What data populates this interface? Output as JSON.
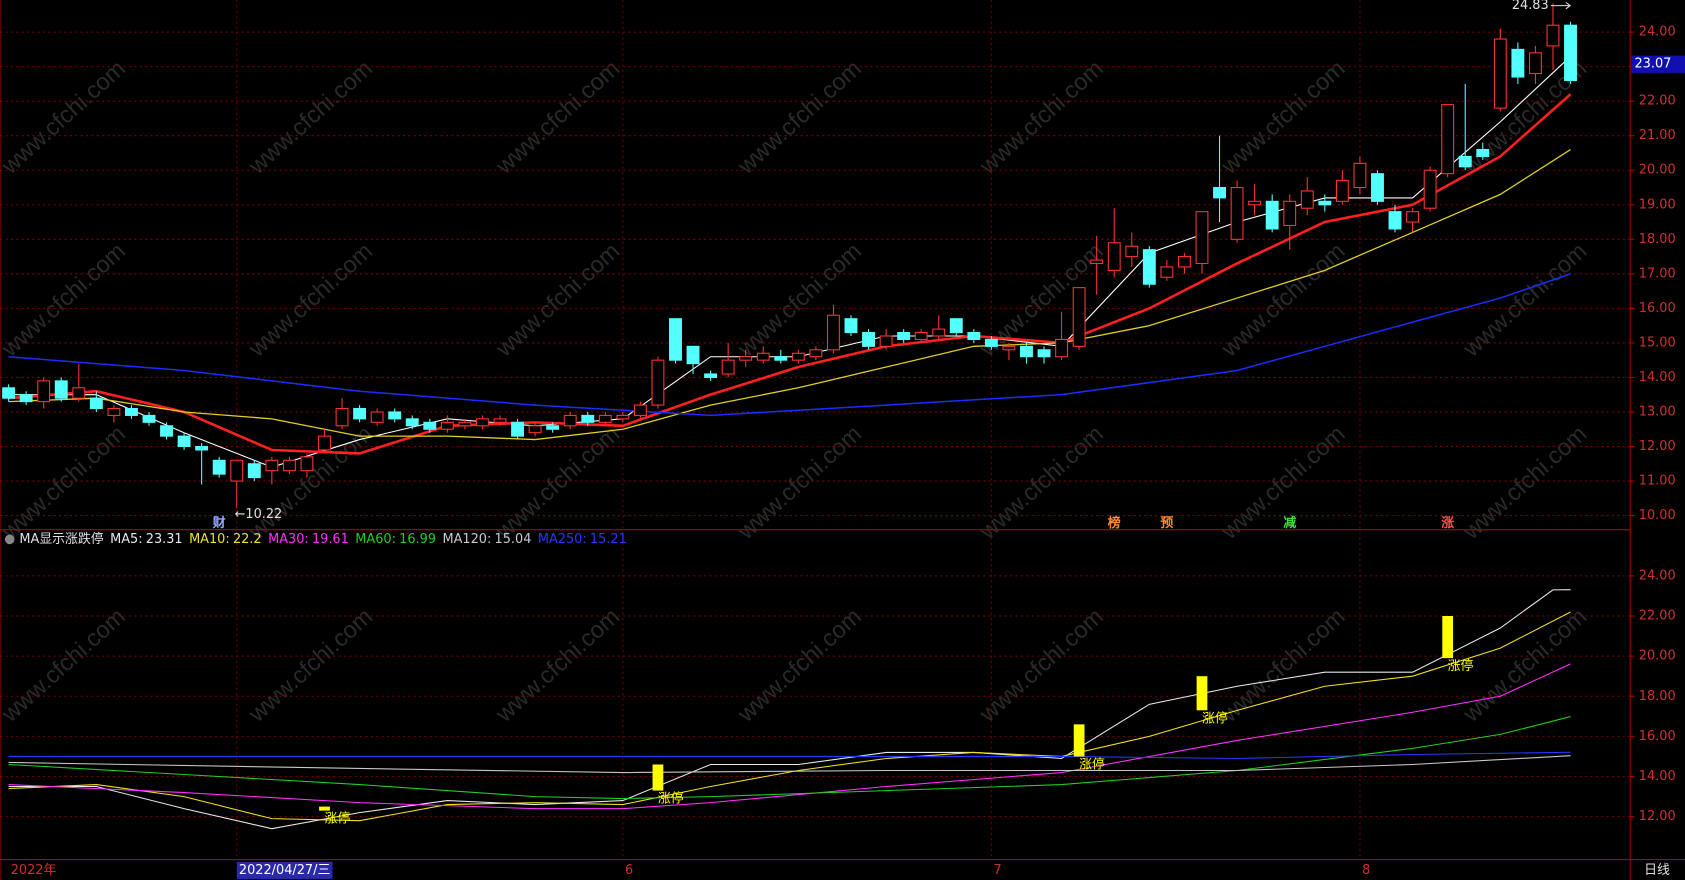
{
  "chart_data": [
    {
      "type": "candlestick",
      "xlim": [
        -0.49,
        92.4
      ],
      "ylim": [
        9.59,
        24.93
      ],
      "yticks": [
        {
          "value": 10,
          "label": "10.00"
        },
        {
          "value": 11,
          "label": "11.00"
        },
        {
          "value": 12,
          "label": "12.00"
        },
        {
          "value": 13,
          "label": "13.00"
        },
        {
          "value": 14,
          "label": "14.00"
        },
        {
          "value": 15,
          "label": "15.00"
        },
        {
          "value": 16,
          "label": "16.00"
        },
        {
          "value": 17,
          "label": "17.00"
        },
        {
          "value": 18,
          "label": "18.00"
        },
        {
          "value": 19,
          "label": "19.00"
        },
        {
          "value": 20,
          "label": "20.00"
        },
        {
          "value": 21,
          "label": "21.00"
        },
        {
          "value": 22,
          "label": "22.00"
        },
        {
          "value": 23,
          "label": "23.00"
        },
        {
          "value": 24,
          "label": "24.00"
        }
      ],
      "grid": true,
      "up_color": "#ff3232",
      "down_color": "#54ffff",
      "candles": [
        [
          13.7,
          13.8,
          13.3,
          13.4
        ],
        [
          13.5,
          13.6,
          13.2,
          13.3
        ],
        [
          13.3,
          14.0,
          13.1,
          13.9
        ],
        [
          13.9,
          14.0,
          13.3,
          13.4
        ],
        [
          13.4,
          14.4,
          13.3,
          13.7
        ],
        [
          13.4,
          13.6,
          13.0,
          13.1
        ],
        [
          12.9,
          13.2,
          12.7,
          13.1
        ],
        [
          13.1,
          13.2,
          12.8,
          12.9
        ],
        [
          12.9,
          13.0,
          12.6,
          12.7
        ],
        [
          12.6,
          12.7,
          12.2,
          12.3
        ],
        [
          12.3,
          12.4,
          11.9,
          12.0
        ],
        [
          12.0,
          12.1,
          10.9,
          11.9
        ],
        [
          11.6,
          11.7,
          11.1,
          11.2
        ],
        [
          11.0,
          11.6,
          10.22,
          11.6
        ],
        [
          11.5,
          11.6,
          11.0,
          11.1
        ],
        [
          11.3,
          11.7,
          10.9,
          11.6
        ],
        [
          11.3,
          11.7,
          11.2,
          11.6
        ],
        [
          11.3,
          11.8,
          11.1,
          11.7
        ],
        [
          11.9,
          12.5,
          11.8,
          12.3
        ],
        [
          12.6,
          13.4,
          12.5,
          13.1
        ],
        [
          13.1,
          13.2,
          12.7,
          12.8
        ],
        [
          12.7,
          13.1,
          12.6,
          13.0
        ],
        [
          13.0,
          13.1,
          12.7,
          12.8
        ],
        [
          12.8,
          12.9,
          12.5,
          12.6
        ],
        [
          12.7,
          12.8,
          12.4,
          12.5
        ],
        [
          12.5,
          12.9,
          12.4,
          12.7
        ],
        [
          12.6,
          12.8,
          12.5,
          12.7
        ],
        [
          12.6,
          12.9,
          12.5,
          12.8
        ],
        [
          12.7,
          12.9,
          12.6,
          12.8
        ],
        [
          12.7,
          12.8,
          12.2,
          12.3
        ],
        [
          12.4,
          12.7,
          12.3,
          12.6
        ],
        [
          12.6,
          12.7,
          12.4,
          12.5
        ],
        [
          12.6,
          13.0,
          12.5,
          12.9
        ],
        [
          12.9,
          13.0,
          12.6,
          12.7
        ],
        [
          12.7,
          13.0,
          12.6,
          12.9
        ],
        [
          12.8,
          13.0,
          12.7,
          12.9
        ],
        [
          12.9,
          13.3,
          12.8,
          13.2
        ],
        [
          13.2,
          14.6,
          13.1,
          14.5
        ],
        [
          15.7,
          15.7,
          14.4,
          14.5
        ],
        [
          14.9,
          14.9,
          14.1,
          14.4
        ],
        [
          14.1,
          14.2,
          13.9,
          14.0
        ],
        [
          14.1,
          15.0,
          14.0,
          14.5
        ],
        [
          14.5,
          14.8,
          14.3,
          14.6
        ],
        [
          14.5,
          14.9,
          14.4,
          14.7
        ],
        [
          14.6,
          14.8,
          14.4,
          14.5
        ],
        [
          14.5,
          14.8,
          14.4,
          14.7
        ],
        [
          14.6,
          14.9,
          14.5,
          14.8
        ],
        [
          14.8,
          16.1,
          14.7,
          15.8
        ],
        [
          15.7,
          15.8,
          15.2,
          15.3
        ],
        [
          15.3,
          15.4,
          14.8,
          14.9
        ],
        [
          14.9,
          15.4,
          14.8,
          15.2
        ],
        [
          15.3,
          15.4,
          15.0,
          15.1
        ],
        [
          15.1,
          15.4,
          15.0,
          15.3
        ],
        [
          15.2,
          15.8,
          15.1,
          15.4
        ],
        [
          15.7,
          15.7,
          15.2,
          15.3
        ],
        [
          15.3,
          15.4,
          15.0,
          15.1
        ],
        [
          15.1,
          15.2,
          14.8,
          14.9
        ],
        [
          14.8,
          15.0,
          14.5,
          14.9
        ],
        [
          14.9,
          15.0,
          14.4,
          14.6
        ],
        [
          14.8,
          14.9,
          14.4,
          14.6
        ],
        [
          14.6,
          15.9,
          14.5,
          15.1
        ],
        [
          14.9,
          16.6,
          14.8,
          16.6
        ],
        [
          17.3,
          18.1,
          16.4,
          17.4
        ],
        [
          17.1,
          18.9,
          16.9,
          17.9
        ],
        [
          17.5,
          18.2,
          17.2,
          17.8
        ],
        [
          17.7,
          17.8,
          16.6,
          16.7
        ],
        [
          16.9,
          17.4,
          16.8,
          17.2
        ],
        [
          17.2,
          17.6,
          17.0,
          17.5
        ],
        [
          17.3,
          18.8,
          17.0,
          18.8
        ],
        [
          19.5,
          21.0,
          18.5,
          19.2
        ],
        [
          18.0,
          19.7,
          17.9,
          19.5
        ],
        [
          19.0,
          19.6,
          18.7,
          19.1
        ],
        [
          19.1,
          19.3,
          18.2,
          18.3
        ],
        [
          18.4,
          19.3,
          17.7,
          19.1
        ],
        [
          18.9,
          19.8,
          18.7,
          19.4
        ],
        [
          19.1,
          19.3,
          18.8,
          19.0
        ],
        [
          19.1,
          20.0,
          19.0,
          19.7
        ],
        [
          19.5,
          20.4,
          19.3,
          20.2
        ],
        [
          19.9,
          20.0,
          19.0,
          19.1
        ],
        [
          18.8,
          19.0,
          18.2,
          18.3
        ],
        [
          18.5,
          18.9,
          18.2,
          18.8
        ],
        [
          18.9,
          20.1,
          18.8,
          20.0
        ],
        [
          19.9,
          21.9,
          19.8,
          21.9
        ],
        [
          20.4,
          22.5,
          20.0,
          20.1
        ],
        [
          20.6,
          20.8,
          20.3,
          20.4
        ],
        [
          21.8,
          24.1,
          21.7,
          23.8
        ],
        [
          23.5,
          23.7,
          22.5,
          22.7
        ],
        [
          22.8,
          23.6,
          22.5,
          23.4
        ],
        [
          23.6,
          24.83,
          22.9,
          24.2
        ],
        [
          24.2,
          24.3,
          22.5,
          22.6
        ]
      ],
      "lines": [
        {
          "color": "#ffffff",
          "width": 1,
          "x": [
            0,
            5,
            10,
            15,
            20,
            25,
            30,
            35,
            40,
            45,
            50,
            55,
            60,
            65,
            70,
            75,
            80,
            85,
            89
          ],
          "values": [
            13.5,
            13.5,
            12.4,
            11.4,
            12.2,
            12.8,
            12.6,
            12.8,
            14.6,
            14.6,
            15.2,
            15.2,
            14.9,
            17.6,
            18.5,
            19.2,
            19.2,
            21.4,
            23.3
          ]
        },
        {
          "color": "#ff2020",
          "width": 2.4,
          "x": [
            0,
            5,
            10,
            15,
            20,
            25,
            30,
            35,
            40,
            45,
            50,
            55,
            60,
            65,
            70,
            75,
            80,
            85,
            89
          ],
          "values": [
            13.4,
            13.6,
            13.0,
            11.9,
            11.8,
            12.6,
            12.7,
            12.6,
            13.5,
            14.3,
            14.9,
            15.2,
            15.0,
            16.0,
            17.3,
            18.5,
            19.0,
            20.4,
            22.2
          ]
        },
        {
          "color": "#e0d020",
          "width": 1.2,
          "x": [
            0,
            5,
            10,
            15,
            20,
            25,
            30,
            35,
            40,
            45,
            50,
            55,
            60,
            65,
            70,
            75,
            80,
            85,
            89
          ],
          "values": [
            13.3,
            13.4,
            13.0,
            12.8,
            12.3,
            12.3,
            12.2,
            12.5,
            13.2,
            13.7,
            14.3,
            14.9,
            15.0,
            15.5,
            16.3,
            17.1,
            18.2,
            19.3,
            20.6
          ]
        },
        {
          "color": "#1c2cff",
          "width": 1.4,
          "x": [
            0,
            10,
            20,
            30,
            40,
            50,
            60,
            70,
            75,
            80,
            85,
            89
          ],
          "values": [
            14.6,
            14.2,
            13.6,
            13.2,
            12.9,
            13.2,
            13.5,
            14.2,
            14.9,
            15.6,
            16.3,
            17.0
          ]
        }
      ],
      "high_label": {
        "index": 88,
        "value": 24.83
      },
      "low_label": {
        "index": 13,
        "value": 10.22,
        "label": "←10.22"
      },
      "last_price": 23.07,
      "events": [
        {
          "index": 12,
          "label": "财",
          "color": "#9aa8ff"
        },
        {
          "index": 63,
          "label": "榜",
          "color": "#ff8c28"
        },
        {
          "index": 66,
          "label": "预",
          "color": "#ff8c28"
        },
        {
          "index": 73,
          "label": "减",
          "color": "#40e040"
        },
        {
          "index": 82,
          "label": "涨",
          "color": "#ff5050"
        }
      ],
      "x_labels": [
        {
          "index": 0,
          "label": "2022年"
        },
        {
          "index": 13,
          "label": "2022/04/27/三",
          "highlight": true
        },
        {
          "index": 35,
          "label": "6"
        },
        {
          "index": 56,
          "label": "7"
        },
        {
          "index": 77,
          "label": "8"
        }
      ],
      "period": "日线",
      "watermark": "www.cfchi.com"
    },
    {
      "type": "line",
      "title": "MA显示涨跌停",
      "legend_separator": ":",
      "xlim": [
        -0.49,
        92.4
      ],
      "ylim": [
        9.86,
        25.39
      ],
      "yticks": [
        {
          "value": 12,
          "label": "12.00"
        },
        {
          "value": 14,
          "label": "14.00"
        },
        {
          "value": 16,
          "label": "16.00"
        },
        {
          "value": 18,
          "label": "18.00"
        },
        {
          "value": 20,
          "label": "20.00"
        },
        {
          "value": 22,
          "label": "22.00"
        },
        {
          "value": 24,
          "label": "24.00"
        }
      ],
      "series": [
        {
          "name": "MA5",
          "color": "#e8e8e8",
          "latest": 23.31,
          "x": [
            0,
            5,
            10,
            15,
            20,
            25,
            30,
            35,
            40,
            45,
            50,
            55,
            60,
            65,
            70,
            75,
            80,
            85,
            88,
            89
          ],
          "values": [
            13.5,
            13.5,
            12.4,
            11.4,
            12.2,
            12.8,
            12.6,
            12.8,
            14.6,
            14.6,
            15.2,
            15.2,
            14.9,
            17.6,
            18.5,
            19.2,
            19.2,
            21.4,
            23.3,
            23.31
          ]
        },
        {
          "name": "MA10",
          "color": "#f0e020",
          "latest": 22.2,
          "x": [
            0,
            5,
            10,
            15,
            20,
            25,
            30,
            35,
            40,
            45,
            50,
            55,
            60,
            65,
            70,
            75,
            80,
            85,
            89
          ],
          "values": [
            13.4,
            13.6,
            13.0,
            11.9,
            11.8,
            12.6,
            12.7,
            12.6,
            13.5,
            14.3,
            14.9,
            15.2,
            15.0,
            16.0,
            17.3,
            18.5,
            19.0,
            20.4,
            22.2
          ]
        },
        {
          "name": "MA30",
          "color": "#ff30ff",
          "latest": 19.61,
          "x": [
            0,
            10,
            20,
            30,
            35,
            40,
            50,
            60,
            70,
            80,
            85,
            89
          ],
          "values": [
            13.6,
            13.2,
            12.7,
            12.4,
            12.4,
            12.7,
            13.5,
            14.2,
            15.8,
            17.2,
            18.0,
            19.61
          ]
        },
        {
          "name": "MA60",
          "color": "#20d020",
          "latest": 16.99,
          "x": [
            0,
            10,
            20,
            30,
            35,
            40,
            50,
            60,
            70,
            80,
            85,
            89
          ],
          "values": [
            14.6,
            14.1,
            13.6,
            13.0,
            12.9,
            13.0,
            13.3,
            13.6,
            14.3,
            15.4,
            16.1,
            16.99
          ]
        },
        {
          "name": "MA120",
          "color": "#c8c8c8",
          "latest": 15.04,
          "x": [
            0,
            20,
            35,
            50,
            70,
            80,
            89
          ],
          "values": [
            14.7,
            14.4,
            14.2,
            14.3,
            14.3,
            14.6,
            15.04
          ]
        },
        {
          "name": "MA250",
          "color": "#2838ff",
          "latest": 15.21,
          "x": [
            0,
            20,
            40,
            60,
            70,
            80,
            89
          ],
          "values": [
            15.0,
            15.0,
            15.0,
            15.0,
            14.9,
            15.1,
            15.21
          ]
        }
      ],
      "limit_up": [
        {
          "index": 18,
          "low": 12.3,
          "high": 12.5,
          "label": "涨停"
        },
        {
          "index": 37,
          "low": 13.3,
          "high": 14.6,
          "label": "涨停"
        },
        {
          "index": 61,
          "low": 15.0,
          "high": 16.6,
          "label": "涨停"
        },
        {
          "index": 68,
          "low": 17.3,
          "high": 19.0,
          "label": "涨停"
        },
        {
          "index": 82,
          "low": 19.9,
          "high": 22.0,
          "label": "涨停"
        }
      ],
      "limit_color": "#ffff00"
    }
  ]
}
